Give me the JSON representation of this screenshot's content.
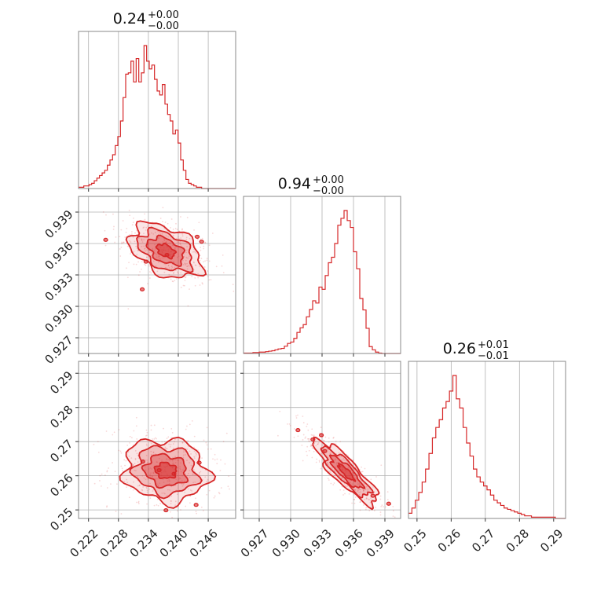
{
  "chart_data": {
    "type": "corner",
    "color": "#d62728",
    "grid": true,
    "parameters": [
      {
        "title_value": "0.24",
        "err_plus": "+0.00",
        "err_minus": "−0.00",
        "range": [
          0.22,
          0.2515
        ],
        "ticks": [
          0.222,
          0.228,
          0.234,
          0.24,
          0.246
        ],
        "tick_labels": [
          "0.222",
          "0.228",
          "0.234",
          "0.240",
          "0.246"
        ],
        "hist": {
          "bins": [
            0.22,
            0.2515
          ],
          "counts": [
            1,
            1,
            2,
            2,
            3,
            4,
            6,
            8,
            10,
            12,
            14,
            18,
            22,
            26,
            33,
            40,
            52,
            70,
            88,
            89,
            98,
            82,
            100,
            82,
            89,
            110,
            98,
            92,
            95,
            84,
            75,
            72,
            80,
            65,
            57,
            52,
            42,
            45,
            35,
            22,
            14,
            7,
            4,
            3,
            2,
            1,
            1,
            0,
            0,
            0,
            0,
            0,
            0,
            0,
            0,
            0,
            0,
            0,
            0,
            0
          ]
        }
      },
      {
        "title_value": "0.94",
        "err_plus": "+0.00",
        "err_minus": "−0.00",
        "range": [
          0.9255,
          0.9405
        ],
        "ticks": [
          0.927,
          0.93,
          0.933,
          0.936,
          0.939
        ],
        "tick_labels": [
          "0.927",
          "0.930",
          "0.933",
          "0.936",
          "0.939"
        ],
        "hist": {
          "bins": [
            0.9255,
            0.9405
          ],
          "counts": [
            1,
            1,
            1,
            2,
            2,
            3,
            3,
            4,
            5,
            6,
            8,
            10,
            11,
            16,
            22,
            25,
            33,
            46,
            56,
            63,
            80,
            96,
            115,
            110,
            145,
            140,
            170,
            198,
            210,
            240,
            280,
            295,
            312,
            290,
            275,
            222,
            185,
            120,
            95,
            55,
            15,
            8,
            3,
            1,
            0,
            0,
            0,
            0,
            0,
            0
          ]
        }
      },
      {
        "title_value": "0.26",
        "err_plus": "+0.01",
        "err_minus": "−0.01",
        "range": [
          0.2475,
          0.2935
        ],
        "ticks": [
          0.25,
          0.26,
          0.27,
          0.28,
          0.29
        ],
        "tick_labels": [
          "0.25",
          "0.26",
          "0.27",
          "0.28",
          "0.29"
        ],
        "hist": {
          "bins": [
            0.2475,
            0.2935
          ],
          "counts": [
            4,
            8,
            14,
            20,
            28,
            38,
            50,
            62,
            70,
            76,
            85,
            90,
            98,
            110,
            92,
            85,
            70,
            58,
            48,
            38,
            32,
            28,
            25,
            22,
            18,
            14,
            12,
            10,
            8,
            7,
            6,
            5,
            4,
            3,
            2,
            2,
            1,
            1,
            1,
            1,
            1,
            1,
            1,
            0,
            0,
            0
          ]
        }
      }
    ],
    "pairs": [
      {
        "x_param": 0,
        "y_param": 1,
        "center": [
          0.2375,
          0.9353
        ],
        "sd": [
          0.0036,
          0.0013
        ],
        "rho": -0.42
      },
      {
        "x_param": 0,
        "y_param": 2,
        "center": [
          0.2375,
          0.2615
        ],
        "sd": [
          0.0042,
          0.0046
        ],
        "rho": -0.1
      },
      {
        "x_param": 1,
        "y_param": 2,
        "center": [
          0.9353,
          0.261
        ],
        "sd": [
          0.0015,
          0.0047
        ],
        "rho": -0.86
      }
    ]
  }
}
